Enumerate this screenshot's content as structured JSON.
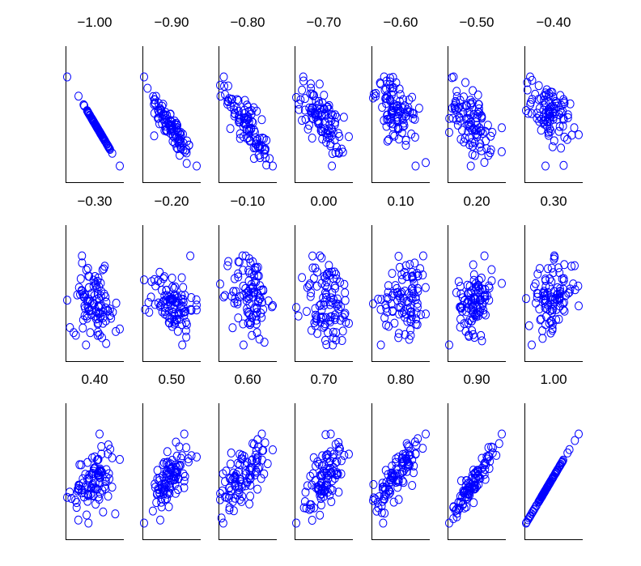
{
  "chart_data": {
    "type": "scatter",
    "layout": "small-multiples grid, 3 rows x 7 columns",
    "description": "Scatter plots of correlated random samples for correlation coefficients from -1.00 to 1.00",
    "points_per_panel": 100,
    "marker": "open circle",
    "marker_color": "#0000ff",
    "axes": {
      "ticks": "none",
      "tick_labels": "none",
      "grid": false,
      "frame": "left and bottom only"
    },
    "correlations": [
      -1.0,
      -0.9,
      -0.8,
      -0.7,
      -0.6,
      -0.5,
      -0.4,
      -0.3,
      -0.2,
      -0.1,
      0.0,
      0.1,
      0.2,
      0.3,
      0.4,
      0.5,
      0.6,
      0.7,
      0.8,
      0.9,
      1.0
    ],
    "titles": [
      "−1.00",
      "−0.90",
      "−0.80",
      "−0.70",
      "−0.60",
      "−0.50",
      "−0.40",
      "−0.30",
      "−0.20",
      "−0.10",
      "0.00",
      "0.10",
      "0.20",
      "0.30",
      "0.40",
      "0.50",
      "0.60",
      "0.70",
      "0.80",
      "0.90",
      "1.00"
    ]
  }
}
